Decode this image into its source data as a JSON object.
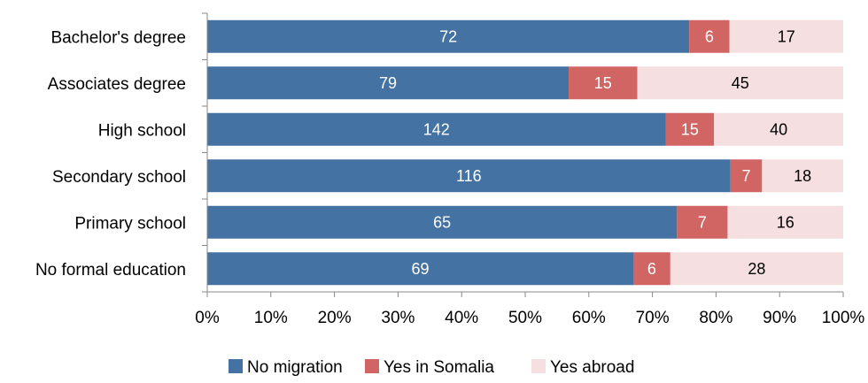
{
  "chart_data": {
    "type": "bar",
    "orientation": "horizontal",
    "stacked": "percent",
    "categories": [
      "Bachelor's degree",
      "Associates degree",
      "High school",
      "Secondary school",
      "Primary school",
      "No formal education"
    ],
    "series": [
      {
        "name": "No migration",
        "color": "#4472a2",
        "values": [
          72,
          79,
          142,
          116,
          65,
          69
        ]
      },
      {
        "name": "Yes in Somalia",
        "color": "#d06564",
        "values": [
          6,
          15,
          15,
          7,
          7,
          6
        ]
      },
      {
        "name": "Yes abroad",
        "color": "#f5dfe0",
        "values": [
          17,
          45,
          40,
          18,
          16,
          28
        ]
      }
    ],
    "x_ticks": [
      "0%",
      "10%",
      "20%",
      "30%",
      "40%",
      "50%",
      "60%",
      "70%",
      "80%",
      "90%",
      "100%"
    ],
    "xlim": [
      0,
      100
    ],
    "legend_position": "bottom",
    "grid": false
  }
}
